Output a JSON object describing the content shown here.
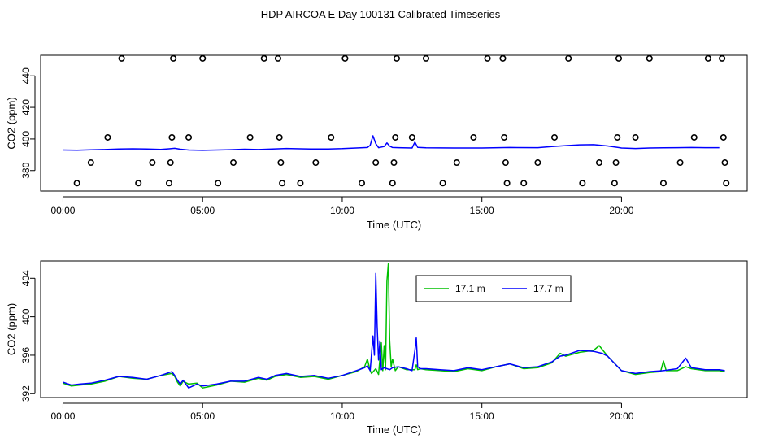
{
  "colors": {
    "series_17_1": "#00c000",
    "series_17_7": "#0000ff",
    "frame": "#000000"
  },
  "chart_data": [
    {
      "type": "scatter+line",
      "title": "HDP AIRCOA E  Day 100131  Calibrated Timeseries",
      "xlabel": "Time (UTC)",
      "ylabel": "CO2 (ppm)",
      "xlim": [
        -0.8,
        24.5
      ],
      "ylim": [
        367,
        453
      ],
      "xtick_values": [
        0,
        5,
        10,
        15,
        20
      ],
      "xtick_labels": [
        "00:00",
        "05:00",
        "10:00",
        "15:00",
        "20:00"
      ],
      "ytick_values": [
        380,
        400,
        420,
        440
      ],
      "ytick_labels": [
        "380",
        "400",
        "420",
        "440"
      ],
      "grid": false,
      "legend": "none",
      "points_x": [
        0.5,
        1.0,
        1.6,
        2.1,
        2.7,
        3.2,
        3.8,
        3.85,
        3.9,
        3.95,
        4.5,
        5.0,
        5.55,
        6.1,
        6.7,
        7.2,
        7.7,
        7.75,
        7.8,
        7.85,
        8.5,
        9.05,
        9.6,
        10.1,
        10.7,
        11.2,
        11.8,
        11.85,
        11.9,
        11.95,
        12.5,
        13.0,
        13.6,
        14.1,
        14.7,
        15.2,
        15.75,
        15.8,
        15.85,
        15.9,
        16.5,
        17.0,
        17.6,
        18.1,
        18.6,
        19.2,
        19.75,
        19.8,
        19.85,
        19.9,
        20.5,
        21.0,
        21.5,
        22.1,
        22.6,
        23.1,
        23.6,
        23.65,
        23.7,
        23.75
      ],
      "points_y": [
        372,
        385,
        401,
        451,
        372,
        385,
        372,
        385,
        401,
        451,
        401,
        451,
        372,
        385,
        401,
        451,
        451,
        401,
        385,
        372,
        372,
        385,
        401,
        451,
        372,
        385,
        372,
        385,
        401,
        451,
        401,
        451,
        372,
        385,
        401,
        451,
        451,
        401,
        385,
        372,
        372,
        385,
        401,
        451,
        372,
        385,
        372,
        385,
        401,
        451,
        401,
        451,
        372,
        385,
        401,
        451,
        451,
        401,
        385,
        372
      ],
      "series": [
        {
          "name": "",
          "color": "#0000ff",
          "x": [
            0.0,
            0.5,
            1.0,
            1.5,
            2.0,
            2.5,
            3.0,
            3.5,
            3.8,
            4.0,
            4.2,
            4.5,
            5.0,
            5.5,
            6.0,
            6.5,
            7.0,
            7.5,
            8.0,
            8.5,
            9.0,
            9.5,
            10.0,
            10.5,
            10.9,
            11.0,
            11.1,
            11.2,
            11.3,
            11.5,
            11.6,
            11.7,
            11.8,
            12.0,
            12.5,
            12.6,
            12.7,
            13.0,
            14.0,
            15.0,
            16.0,
            17.0,
            17.5,
            18.0,
            18.5,
            19.0,
            19.5,
            20.0,
            20.5,
            21.0,
            21.5,
            22.0,
            22.5,
            23.0,
            23.5
          ],
          "y": [
            393.0,
            392.9,
            393.1,
            393.3,
            393.6,
            393.8,
            393.6,
            393.4,
            393.8,
            394.1,
            393.5,
            393.0,
            392.8,
            393.0,
            393.2,
            393.5,
            393.3,
            393.7,
            394.0,
            393.8,
            393.6,
            393.7,
            393.9,
            394.3,
            394.6,
            396.0,
            402.0,
            397.0,
            394.5,
            395.2,
            397.5,
            395.5,
            394.6,
            394.5,
            394.3,
            398.0,
            394.7,
            394.4,
            394.3,
            394.3,
            394.6,
            394.5,
            395.2,
            395.8,
            396.3,
            396.4,
            395.6,
            394.3,
            394.0,
            394.3,
            394.4,
            394.5,
            394.6,
            394.5,
            394.5
          ]
        }
      ]
    },
    {
      "type": "line",
      "title": "",
      "xlabel": "Time (UTC)",
      "ylabel": "CO2 (ppm)",
      "xlim": [
        -0.8,
        24.5
      ],
      "ylim": [
        391.6,
        405.8
      ],
      "xtick_values": [
        0,
        5,
        10,
        15,
        20
      ],
      "xtick_labels": [
        "00:00",
        "05:00",
        "10:00",
        "15:00",
        "20:00"
      ],
      "ytick_values": [
        392,
        396,
        400,
        404
      ],
      "ytick_labels": [
        "392",
        "396",
        "400",
        "404"
      ],
      "grid": false,
      "legend": "top-center",
      "series": [
        {
          "name": "17.1 m",
          "color": "#00c000",
          "x": [
            0.0,
            0.3,
            0.6,
            1.0,
            1.5,
            2.0,
            2.5,
            3.0,
            3.5,
            3.9,
            4.0,
            4.1,
            4.2,
            4.3,
            4.5,
            4.8,
            5.0,
            5.5,
            6.0,
            6.5,
            7.0,
            7.3,
            7.6,
            8.0,
            8.5,
            9.0,
            9.5,
            10.0,
            10.5,
            10.8,
            10.9,
            11.0,
            11.05,
            11.2,
            11.3,
            11.4,
            11.45,
            11.5,
            11.55,
            11.6,
            11.65,
            11.7,
            11.75,
            11.8,
            11.9,
            12.0,
            12.3,
            12.6,
            12.65,
            12.7,
            12.8,
            13.0,
            13.5,
            14.0,
            14.5,
            15.0,
            15.5,
            16.0,
            16.5,
            17.0,
            17.5,
            17.8,
            18.0,
            18.5,
            19.0,
            19.2,
            19.5,
            20.0,
            20.5,
            21.0,
            21.4,
            21.5,
            21.6,
            22.0,
            22.3,
            22.5,
            23.0,
            23.5,
            23.7
          ],
          "y": [
            393.1,
            392.8,
            392.9,
            393.0,
            393.3,
            393.8,
            393.6,
            393.5,
            393.9,
            394.1,
            393.8,
            393.2,
            392.8,
            393.3,
            393.0,
            393.1,
            392.6,
            392.9,
            393.3,
            393.2,
            393.6,
            393.4,
            393.8,
            394.0,
            393.7,
            393.8,
            393.5,
            393.9,
            394.3,
            394.8,
            395.6,
            394.4,
            394.1,
            394.6,
            394.0,
            397.3,
            394.4,
            397.0,
            394.5,
            403.7,
            405.5,
            397.5,
            394.8,
            395.6,
            394.4,
            394.8,
            394.5,
            394.5,
            395.0,
            394.5,
            394.6,
            394.5,
            394.4,
            394.3,
            394.6,
            394.4,
            394.8,
            395.1,
            394.6,
            394.7,
            395.2,
            396.2,
            395.9,
            396.3,
            396.5,
            397.0,
            395.9,
            394.4,
            394.0,
            394.2,
            394.3,
            395.4,
            394.4,
            394.4,
            394.8,
            394.6,
            394.4,
            394.4,
            394.3
          ]
        },
        {
          "name": "17.7 m",
          "color": "#0000ff",
          "x": [
            0.0,
            0.3,
            0.6,
            1.0,
            1.5,
            2.0,
            2.5,
            3.0,
            3.5,
            3.9,
            4.0,
            4.1,
            4.2,
            4.3,
            4.5,
            4.8,
            5.0,
            5.5,
            6.0,
            6.5,
            7.0,
            7.3,
            7.6,
            8.0,
            8.5,
            9.0,
            9.5,
            10.0,
            10.5,
            10.8,
            10.9,
            11.0,
            11.1,
            11.15,
            11.2,
            11.25,
            11.3,
            11.35,
            11.4,
            11.5,
            11.6,
            11.7,
            11.8,
            12.0,
            12.3,
            12.5,
            12.6,
            12.65,
            12.7,
            12.8,
            13.0,
            13.5,
            14.0,
            14.5,
            15.0,
            15.5,
            16.0,
            16.5,
            17.0,
            17.5,
            17.8,
            18.0,
            18.5,
            19.0,
            19.3,
            19.5,
            20.0,
            20.5,
            21.0,
            21.5,
            22.0,
            22.3,
            22.5,
            23.0,
            23.5,
            23.7
          ],
          "y": [
            393.2,
            392.9,
            393.0,
            393.1,
            393.4,
            393.8,
            393.7,
            393.5,
            393.9,
            394.3,
            393.9,
            393.4,
            393.0,
            393.4,
            392.6,
            393.0,
            392.8,
            393.0,
            393.3,
            393.3,
            393.7,
            393.5,
            393.9,
            394.1,
            393.8,
            393.9,
            393.6,
            393.9,
            394.4,
            394.7,
            394.9,
            394.4,
            398.0,
            396.0,
            404.5,
            399.0,
            395.5,
            397.5,
            394.5,
            394.7,
            394.6,
            394.5,
            394.7,
            394.8,
            394.6,
            394.4,
            396.5,
            397.8,
            394.8,
            394.6,
            394.6,
            394.5,
            394.4,
            394.7,
            394.5,
            394.8,
            395.1,
            394.7,
            394.8,
            395.3,
            395.9,
            396.0,
            396.5,
            396.4,
            396.2,
            395.9,
            394.4,
            394.1,
            394.3,
            394.4,
            394.6,
            395.7,
            394.7,
            394.5,
            394.5,
            394.4
          ]
        }
      ]
    }
  ]
}
